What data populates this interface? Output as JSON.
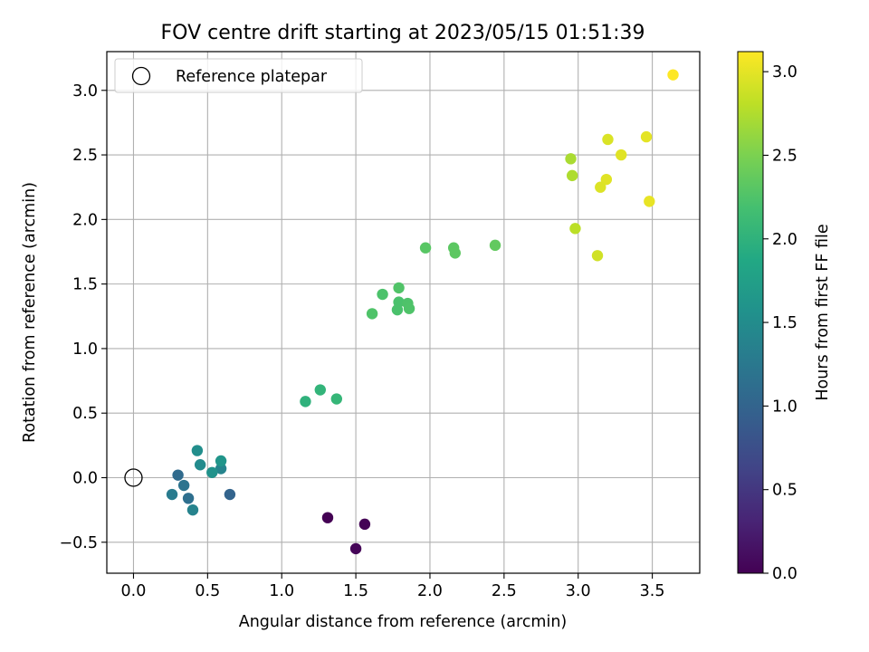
{
  "chart_data": {
    "type": "scatter",
    "title": "FOV centre drift starting at 2023/05/15 01:51:39",
    "xlabel": "Angular distance from reference (arcmin)",
    "ylabel": "Rotation from reference (arcmin)",
    "xlim": [
      -0.18,
      3.82
    ],
    "ylim": [
      -0.74,
      3.3
    ],
    "xticks": [
      0.0,
      0.5,
      1.0,
      1.5,
      2.0,
      2.5,
      3.0,
      3.5
    ],
    "xtick_labels": [
      "0.0",
      "0.5",
      "1.0",
      "1.5",
      "2.0",
      "2.5",
      "3.0",
      "3.5"
    ],
    "yticks": [
      -0.5,
      0.0,
      0.5,
      1.0,
      1.5,
      2.0,
      2.5,
      3.0
    ],
    "ytick_labels": [
      "−0.5",
      "0.0",
      "0.5",
      "1.0",
      "1.5",
      "2.0",
      "2.5",
      "3.0"
    ],
    "grid": true,
    "legend": {
      "placement": "top-left",
      "entries": [
        "Reference platepar"
      ]
    },
    "reference_point": {
      "x": 0.0,
      "y": 0.0
    },
    "colormap": "viridis",
    "colorbar": {
      "label": "Hours from first FF file",
      "range": [
        0.0,
        3.12
      ],
      "ticks": [
        0.0,
        0.5,
        1.0,
        1.5,
        2.0,
        2.5,
        3.0
      ],
      "tick_labels": [
        "0.0",
        "0.5",
        "1.0",
        "1.5",
        "2.0",
        "2.5",
        "3.0"
      ]
    },
    "points": [
      {
        "x": 1.31,
        "y": -0.31,
        "c": 0.0
      },
      {
        "x": 1.56,
        "y": -0.36,
        "c": 0.02
      },
      {
        "x": 1.5,
        "y": -0.55,
        "c": 0.04
      },
      {
        "x": 0.65,
        "y": -0.13,
        "c": 1.0
      },
      {
        "x": 0.3,
        "y": 0.02,
        "c": 1.08
      },
      {
        "x": 0.37,
        "y": -0.16,
        "c": 1.13
      },
      {
        "x": 0.34,
        "y": -0.06,
        "c": 1.18
      },
      {
        "x": 0.26,
        "y": -0.13,
        "c": 1.28
      },
      {
        "x": 0.4,
        "y": -0.25,
        "c": 1.38
      },
      {
        "x": 0.59,
        "y": 0.07,
        "c": 1.4
      },
      {
        "x": 0.45,
        "y": 0.1,
        "c": 1.48
      },
      {
        "x": 0.43,
        "y": 0.21,
        "c": 1.52
      },
      {
        "x": 0.53,
        "y": 0.04,
        "c": 1.58
      },
      {
        "x": 0.59,
        "y": 0.13,
        "c": 1.62
      },
      {
        "x": 1.16,
        "y": 0.59,
        "c": 2.0
      },
      {
        "x": 1.26,
        "y": 0.68,
        "c": 2.03
      },
      {
        "x": 1.37,
        "y": 0.61,
        "c": 2.06
      },
      {
        "x": 1.61,
        "y": 1.27,
        "c": 2.25
      },
      {
        "x": 1.68,
        "y": 1.42,
        "c": 2.23
      },
      {
        "x": 1.79,
        "y": 1.47,
        "c": 2.26
      },
      {
        "x": 1.79,
        "y": 1.36,
        "c": 2.22
      },
      {
        "x": 1.78,
        "y": 1.3,
        "c": 2.22
      },
      {
        "x": 1.85,
        "y": 1.35,
        "c": 2.24
      },
      {
        "x": 1.86,
        "y": 1.31,
        "c": 2.25
      },
      {
        "x": 1.97,
        "y": 1.78,
        "c": 2.3
      },
      {
        "x": 2.16,
        "y": 1.78,
        "c": 2.32
      },
      {
        "x": 2.17,
        "y": 1.74,
        "c": 2.33
      },
      {
        "x": 2.44,
        "y": 1.8,
        "c": 2.36
      },
      {
        "x": 2.95,
        "y": 2.47,
        "c": 2.72
      },
      {
        "x": 2.96,
        "y": 2.34,
        "c": 2.74
      },
      {
        "x": 2.98,
        "y": 1.93,
        "c": 2.8
      },
      {
        "x": 3.2,
        "y": 2.62,
        "c": 2.95
      },
      {
        "x": 3.29,
        "y": 2.5,
        "c": 2.98
      },
      {
        "x": 3.19,
        "y": 2.31,
        "c": 2.98
      },
      {
        "x": 3.15,
        "y": 2.25,
        "c": 2.96
      },
      {
        "x": 3.13,
        "y": 1.72,
        "c": 2.9
      },
      {
        "x": 3.46,
        "y": 2.64,
        "c": 3.0
      },
      {
        "x": 3.48,
        "y": 2.14,
        "c": 3.02
      },
      {
        "x": 3.64,
        "y": 3.12,
        "c": 3.12
      }
    ]
  }
}
